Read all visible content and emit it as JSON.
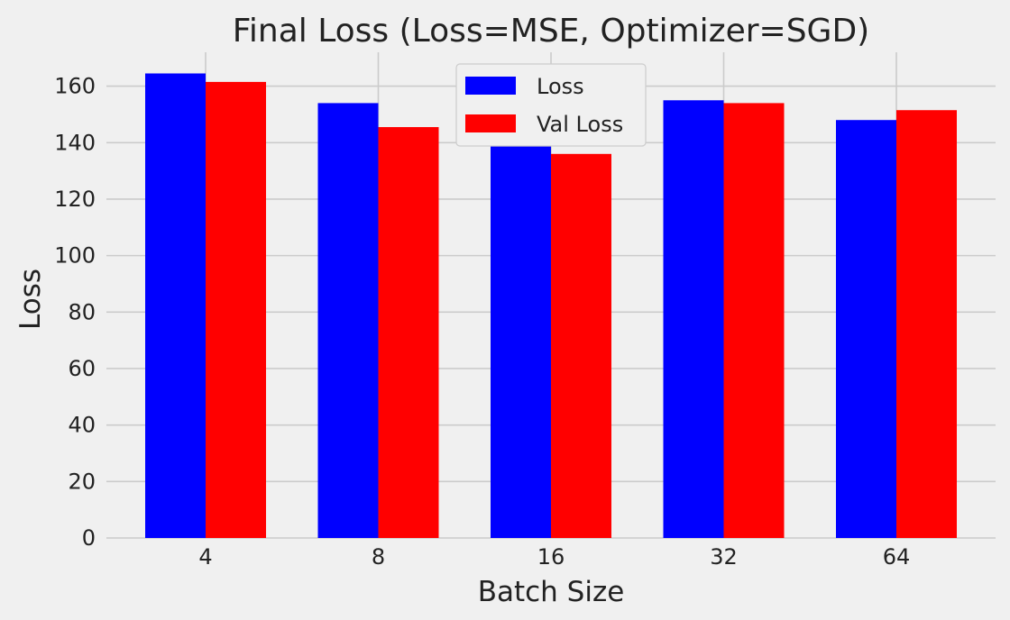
{
  "chart_data": {
    "type": "bar",
    "title": "Final Loss (Loss=MSE, Optimizer=SGD)",
    "xlabel": "Batch Size",
    "ylabel": "Loss",
    "categories": [
      "4",
      "8",
      "16",
      "32",
      "64"
    ],
    "series": [
      {
        "name": "Loss",
        "color": "#0000ff",
        "values": [
          164.5,
          154.0,
          141.0,
          155.0,
          148.0
        ]
      },
      {
        "name": "Val Loss",
        "color": "#ff0000",
        "values": [
          161.5,
          145.5,
          136.0,
          154.0,
          151.5
        ]
      }
    ],
    "ylim": [
      0,
      172
    ],
    "yticks": [
      0,
      20,
      40,
      60,
      80,
      100,
      120,
      140,
      160
    ],
    "grid": true,
    "legend_position": "top-center",
    "background": "#f0f0f0",
    "grid_color": "#cbcbcb"
  }
}
